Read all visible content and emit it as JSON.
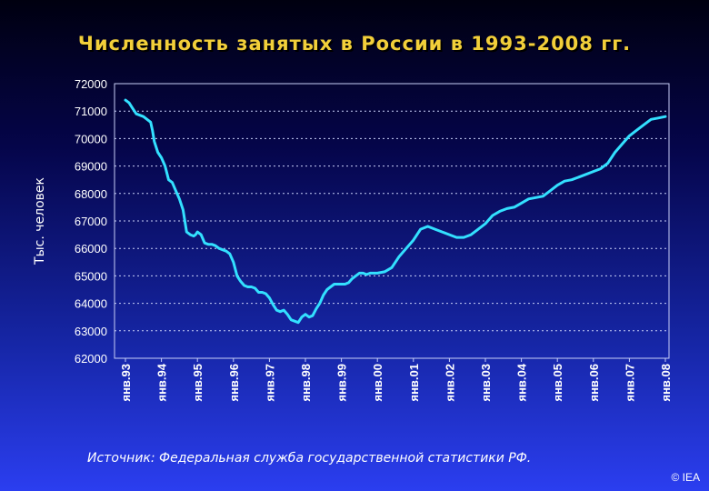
{
  "chart_data": {
    "type": "line",
    "title": "Численность занятых в России в 1993-2008 гг.",
    "ylabel": "Тыс. человек",
    "xlabel": "",
    "ylim": [
      62000,
      72000
    ],
    "yticks": [
      72000,
      71000,
      70000,
      69000,
      68000,
      67000,
      66000,
      65000,
      64000,
      63000,
      62000
    ],
    "xticks": [
      "янв.93",
      "янв.94",
      "янв.95",
      "янв.96",
      "янв.97",
      "янв.98",
      "янв.99",
      "янв.00",
      "янв.01",
      "янв.02",
      "янв.03",
      "янв.04",
      "янв.05",
      "янв.06",
      "янв.07",
      "янв.08"
    ],
    "grid": true,
    "line_color": "#33e0ff",
    "series": [
      {
        "x": [
          1993.0,
          1993.1,
          1993.2,
          1993.3,
          1993.4,
          1993.5,
          1993.6,
          1993.7,
          1993.75,
          1993.8,
          1993.9,
          1994.0,
          1994.1,
          1994.2,
          1994.3,
          1994.4,
          1994.5,
          1994.6,
          1994.7,
          1994.8,
          1994.9,
          1994.95,
          1995.0,
          1995.1,
          1995.2,
          1995.3,
          1995.4,
          1995.5,
          1995.6,
          1995.7,
          1995.8,
          1995.9,
          1996.0,
          1996.1,
          1996.2,
          1996.3,
          1996.4,
          1996.5,
          1996.6,
          1996.7,
          1996.8,
          1996.9,
          1997.0,
          1997.1,
          1997.2,
          1997.3,
          1997.4,
          1997.5,
          1997.6,
          1997.7,
          1997.8,
          1997.9,
          1998.0,
          1998.1,
          1998.2,
          1998.3,
          1998.4,
          1998.5,
          1998.6,
          1998.7,
          1998.75,
          1998.8,
          1998.85,
          1998.9,
          1999.0,
          1999.1,
          1999.2,
          1999.3,
          1999.4,
          1999.5,
          1999.6,
          1999.7,
          1999.8,
          1999.9,
          2000.0,
          2000.2,
          2000.4,
          2000.6,
          2000.8,
          2001.0,
          2001.2,
          2001.4,
          2001.6,
          2001.8,
          2002.0,
          2002.2,
          2002.4,
          2002.6,
          2002.8,
          2003.0,
          2003.2,
          2003.4,
          2003.6,
          2003.8,
          2004.0,
          2004.2,
          2004.4,
          2004.6,
          2004.8,
          2005.0,
          2005.2,
          2005.4,
          2005.6,
          2005.8,
          2006.0,
          2006.2,
          2006.4,
          2006.6,
          2006.8,
          2007.0,
          2007.2,
          2007.4,
          2007.6,
          2007.8,
          2008.0
        ],
        "values": [
          71400,
          71300,
          71100,
          70900,
          70850,
          70800,
          70700,
          70600,
          70300,
          69900,
          69500,
          69300,
          69000,
          68500,
          68400,
          68100,
          67800,
          67400,
          66600,
          66500,
          66450,
          66500,
          66600,
          66500,
          66200,
          66150,
          66150,
          66100,
          66000,
          65950,
          65900,
          65800,
          65500,
          65000,
          64800,
          64650,
          64600,
          64600,
          64550,
          64400,
          64400,
          64350,
          64200,
          63950,
          63750,
          63700,
          63750,
          63600,
          63400,
          63350,
          63300,
          63500,
          63600,
          63500,
          63550,
          63800,
          64000,
          64300,
          64500,
          64600,
          64650,
          64700,
          64700,
          64700,
          64700,
          64700,
          64750,
          64900,
          65000,
          65100,
          65100,
          65050,
          65100,
          65100,
          65100,
          65150,
          65300,
          65700,
          66000,
          66300,
          66700,
          66800,
          66700,
          66600,
          66500,
          66400,
          66400,
          66500,
          66700,
          66900,
          67200,
          67350,
          67450,
          67500,
          67650,
          67800,
          67850,
          67900,
          68100,
          68300,
          68450,
          68500,
          68600,
          68700,
          68800,
          68900,
          69100,
          69500,
          69800,
          70100,
          70300,
          70500,
          70700,
          70750,
          70800
        ]
      }
    ]
  },
  "source_note": "Источник: Федеральная служба государственной статистики РФ.",
  "copyright": "© IEA"
}
